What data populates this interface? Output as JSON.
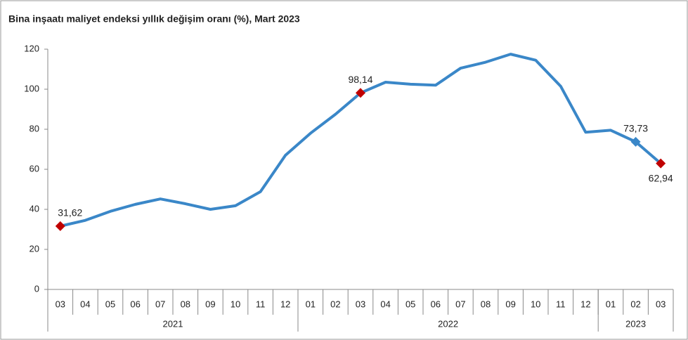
{
  "chart_data": {
    "type": "line",
    "title": "Bina inşaatı maliyet endeksi yıllık değişim oranı (%), Mart 2023",
    "categories": [
      "03",
      "04",
      "05",
      "06",
      "07",
      "08",
      "09",
      "10",
      "11",
      "12",
      "01",
      "02",
      "03",
      "04",
      "05",
      "06",
      "07",
      "08",
      "09",
      "10",
      "11",
      "12",
      "01",
      "02",
      "03"
    ],
    "groups": [
      {
        "label": "2021",
        "size": 10
      },
      {
        "label": "2022",
        "size": 12
      },
      {
        "label": "2023",
        "size": 3
      }
    ],
    "series": [
      {
        "name": "Yıllık değişim",
        "color": "#3a87c8",
        "values": [
          31.62,
          34.5,
          39,
          42.5,
          45.2,
          42.8,
          40,
          41.8,
          48.8,
          67,
          78,
          87.5,
          98.14,
          103.5,
          102.5,
          102,
          110.5,
          113.5,
          117.5,
          114.5,
          101.5,
          78.5,
          79.5,
          73.73,
          62.94
        ],
        "value_labels": [
          "31,62",
          null,
          null,
          null,
          null,
          null,
          null,
          null,
          null,
          null,
          null,
          null,
          "98,14",
          null,
          null,
          null,
          null,
          null,
          null,
          null,
          null,
          null,
          null,
          "73,73",
          "62,94"
        ],
        "marker_colors": [
          "#c00000",
          null,
          null,
          null,
          null,
          null,
          null,
          null,
          null,
          null,
          null,
          null,
          "#c00000",
          null,
          null,
          null,
          null,
          null,
          null,
          null,
          null,
          null,
          null,
          "#3a87c8",
          "#c00000"
        ]
      }
    ],
    "ylim": [
      0,
      120
    ],
    "yticks": [
      0,
      20,
      40,
      60,
      80,
      100,
      120
    ],
    "grid": false
  }
}
